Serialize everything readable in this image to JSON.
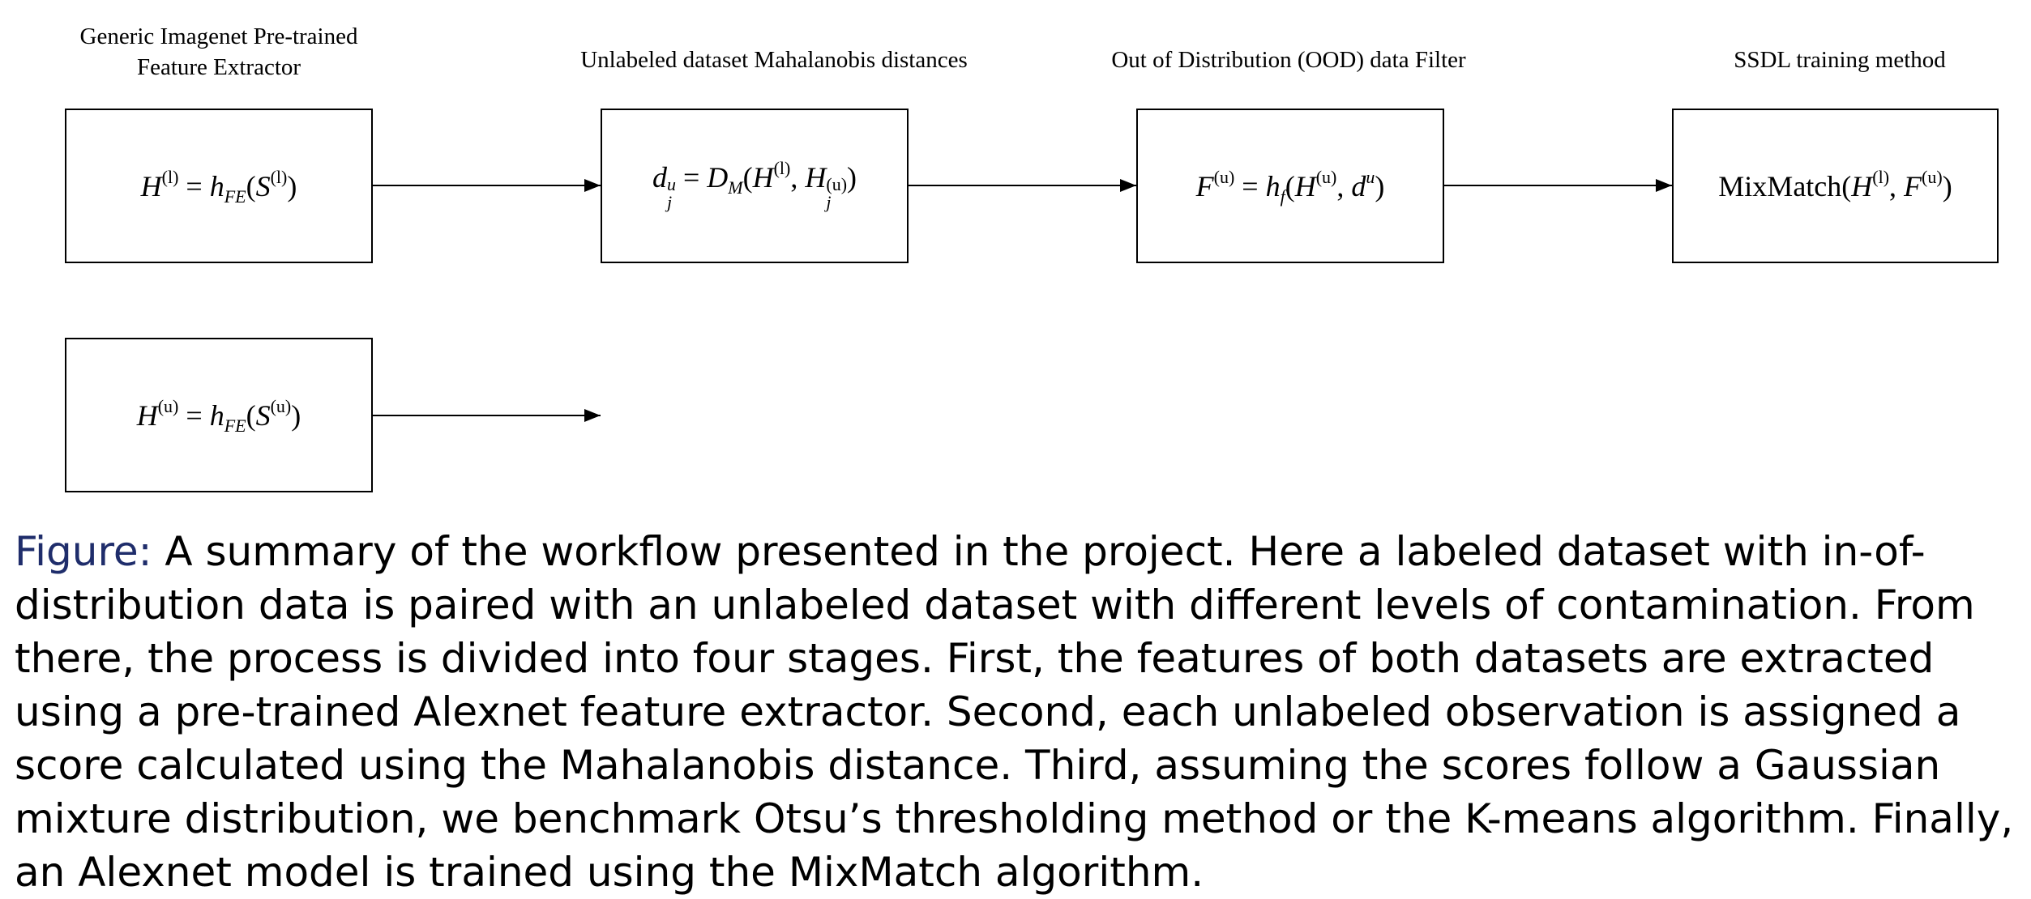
{
  "stages": [
    {
      "title_line1": "Generic Imagenet Pre-trained",
      "title_line2": "Feature Extractor"
    },
    {
      "title_line1": "Unlabeled dataset Mahalanobis distances"
    },
    {
      "title_line1": "Out of Distribution (OOD) data Filter"
    },
    {
      "title_line1": "SSDL training method"
    }
  ],
  "boxes": {
    "feature_labeled": {
      "lhs": "H",
      "lhs_sup": "(l)",
      "eq": " = ",
      "fn": "h",
      "fn_sub": "FE",
      "arg": "S",
      "arg_sup": "(l)"
    },
    "distances": {
      "lhs": "d",
      "lhs_sup": "u",
      "lhs_sub": "j",
      "eq": " = ",
      "fn": "D",
      "fn_sub": "M",
      "a": "H",
      "a_sup": "(l)",
      "b": "H",
      "b_sup": "(u)",
      "b_sub": "j"
    },
    "filter": {
      "lhs": "F",
      "lhs_sup": "(u)",
      "eq": " = ",
      "fn": "h",
      "fn_sub": "f",
      "a": "H",
      "a_sup": "(u)",
      "b": "d",
      "b_sup": "u"
    },
    "mixmatch": {
      "fn": "MixMatch",
      "a": "H",
      "a_sup": "(l)",
      "b": "F",
      "b_sup": "(u)"
    },
    "feature_unlabeled": {
      "lhs": "H",
      "lhs_sup": "(u)",
      "eq": " = ",
      "fn": "h",
      "fn_sub": "FE",
      "arg": "S",
      "arg_sup": "(u)"
    }
  },
  "caption": {
    "label": "Figure:",
    "text": " A summary of the workflow presented in the project. Here a labeled dataset with in-of-distribution data is paired with an unlabeled dataset with different levels of contamination. From there, the process is divided into four stages. First, the features of both datasets are extracted using a pre-trained Alexnet feature extractor. Second, each unlabeled observation is assigned a score calculated using the Mahalanobis distance. Third, assuming the scores follow a Gaussian mixture distribution, we benchmark Otsu’s thresholding method or the K-means algorithm. Finally, an Alexnet model is trained using the MixMatch algorithm."
  },
  "colors": {
    "figure_label": "#1f2d6b",
    "line": "#000000"
  }
}
